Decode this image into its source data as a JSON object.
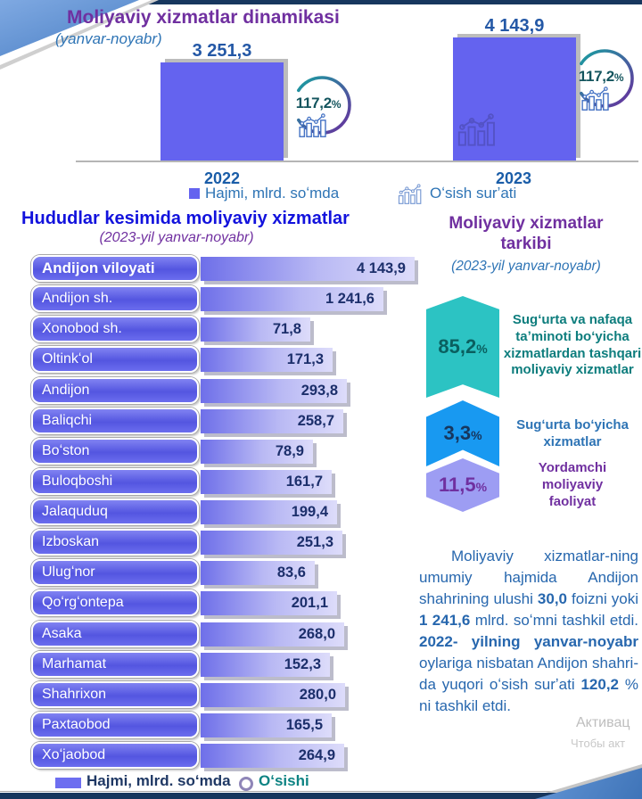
{
  "top_chart": {
    "title": "Moliyaviy xizmatlar dinamikasi",
    "subtitle": "(yanvar-noyabr)",
    "pct_sign": "%",
    "bars": [
      {
        "year": "2022",
        "value": "3 251,3",
        "growth": "117,2"
      },
      {
        "year": "2023",
        "value": "4 143,9",
        "growth": "117,2"
      }
    ],
    "legend": {
      "volume": "Hajmi, mlrd. soʻmda",
      "growth": "Oʻsish surʼati"
    },
    "icons": {
      "legend_growth": "trend-bar-chart-icon",
      "ring": "growth-ring-icon"
    }
  },
  "regions": {
    "title": "Hududlar kesimida moliyaviy xizmatlar",
    "subtitle": "(2023-yil yanvar-noyabr)",
    "rows": [
      {
        "name": "Andijon viloyati",
        "value": 4143.9,
        "display": "4 143,9"
      },
      {
        "name": "Andijon sh.",
        "value": 1241.6,
        "display": "1 241,6"
      },
      {
        "name": "Xonobod sh.",
        "value": 71.8,
        "display": "71,8"
      },
      {
        "name": "Oltinkʻol",
        "value": 171.3,
        "display": "171,3"
      },
      {
        "name": "Andijon",
        "value": 293.8,
        "display": "293,8"
      },
      {
        "name": "Baliqchi",
        "value": 258.7,
        "display": "258,7"
      },
      {
        "name": "Boʻston",
        "value": 78.9,
        "display": "78,9"
      },
      {
        "name": "Buloqboshi",
        "value": 161.7,
        "display": "161,7"
      },
      {
        "name": "Jalaquduq",
        "value": 199.4,
        "display": "199,4"
      },
      {
        "name": "Izboskan",
        "value": 251.3,
        "display": "251,3"
      },
      {
        "name": "Ulugʻnor",
        "value": 83.6,
        "display": "83,6"
      },
      {
        "name": "Qoʻrgʻontepa",
        "value": 201.1,
        "display": "201,1"
      },
      {
        "name": "Asaka",
        "value": 268.0,
        "display": "268,0"
      },
      {
        "name": "Marhamat",
        "value": 152.3,
        "display": "152,3"
      },
      {
        "name": "Shahrixon",
        "value": 280.0,
        "display": "280,0"
      },
      {
        "name": "Paxtaobod",
        "value": 165.5,
        "display": "165,5"
      },
      {
        "name": "Xoʻjaobod",
        "value": 264.9,
        "display": "264,9"
      }
    ],
    "legend": {
      "volume": "Hajmi, mlrd. soʻmda",
      "growth": "Oʻsishi"
    }
  },
  "composition": {
    "title": "Moliyaviy xizmatlar tarkibi",
    "subtitle": "(2023-yil yanvar-noyabr)",
    "pct_sign": "%",
    "items": [
      {
        "pct": "85,2",
        "label": "Sugʻurta va nafaqa taʼminoti boʻyicha xizmatlardan tashqari moliyaviy xizmatlar",
        "shape_color": "#2CC3C3",
        "pct_color": "#0A5F5F",
        "label_color": "#0D7D7D"
      },
      {
        "pct": "3,3",
        "label": "Sugʻurta boʻyicha xizmatlar",
        "shape_color": "#1899F1",
        "pct_color": "#17365D",
        "label_color": "#2E74B5"
      },
      {
        "pct": "11,5",
        "label": "Yordamchi moliyaviy faoliyat",
        "shape_color": "#9D9DF3",
        "pct_color": "#7030A0",
        "label_color": "#7030A0"
      }
    ]
  },
  "paragraph": {
    "segments": [
      {
        "text": "Moliyaviy xizmatlar-ning umumiy hajmida Andijon shahrining ulushi ",
        "bold": false
      },
      {
        "text": "30,0",
        "bold": true
      },
      {
        "text": " foizni yoki ",
        "bold": false
      },
      {
        "text": "1 241,6",
        "bold": true
      },
      {
        "text": " mlrd. soʻmni tashkil etdi. ",
        "bold": false
      },
      {
        "text": "2022- yilning yanvar-noyabr",
        "bold": true
      },
      {
        "text": " oylariga nisbatan Andijon shahri-da yuqori oʻsish surʼati ",
        "bold": false
      },
      {
        "text": "120,2",
        "bold": true
      },
      {
        "text": " % ni tashkil etdi.",
        "bold": false
      }
    ]
  },
  "watermark": {
    "line1": "Активац",
    "line2": "Чтобы акт"
  },
  "colors": {
    "bar_blue": "#6463ef",
    "navy": "#17375E",
    "title_purple": "#7030A0",
    "title_blue": "#1212DD",
    "text_blue": "#2E74B5",
    "value_navy": "#1c2f6b",
    "ring_teal": "#16A3A0",
    "ring_purple": "#6A2D9E",
    "legend_teal": "#0D8383"
  },
  "chart_data": [
    {
      "type": "bar",
      "title": "Moliyaviy xizmatlar dinamikasi (yanvar-noyabr)",
      "categories": [
        "2022",
        "2023"
      ],
      "values": [
        3251.3,
        4143.9
      ],
      "series_label": "Hajmi, mlrd. soʻmda",
      "secondary_series": {
        "name": "Oʻsish surʼati",
        "values": [
          117.2,
          117.2
        ],
        "unit": "%"
      },
      "grid": false,
      "legend_position": "bottom"
    },
    {
      "type": "bar",
      "orientation": "horizontal",
      "title": "Hududlar kesimida moliyaviy xizmatlar (2023-yil yanvar-noyabr)",
      "categories": [
        "Andijon viloyati",
        "Andijon sh.",
        "Xonobod sh.",
        "Oltinkʻol",
        "Andijon",
        "Baliqchi",
        "Boʻston",
        "Buloqboshi",
        "Jalaquduq",
        "Izboskan",
        "Ulugʻnor",
        "Qoʻrgʻontepa",
        "Asaka",
        "Marhamat",
        "Shahrixon",
        "Paxtaobod",
        "Xoʻjaobod"
      ],
      "values": [
        4143.9,
        1241.6,
        71.8,
        171.3,
        293.8,
        258.7,
        78.9,
        161.7,
        199.4,
        251.3,
        83.6,
        201.1,
        268.0,
        152.3,
        280.0,
        165.5,
        264.9
      ],
      "ylabel": "mlrd. soʻm",
      "bar_scale": "logarithmic",
      "grid": false
    },
    {
      "type": "pie",
      "title": "Moliyaviy xizmatlar tarkibi (2023-yil yanvar-noyabr)",
      "labels": [
        "Sugʻurta va nafaqa taʼminoti boʻyicha xizmatlardan tashqari moliyaviy xizmatlar",
        "Sugʻurta boʻyicha xizmatlar",
        "Yordamchi moliyaviy faoliyat"
      ],
      "values": [
        85.2,
        3.3,
        11.5
      ],
      "unit": "%"
    }
  ]
}
